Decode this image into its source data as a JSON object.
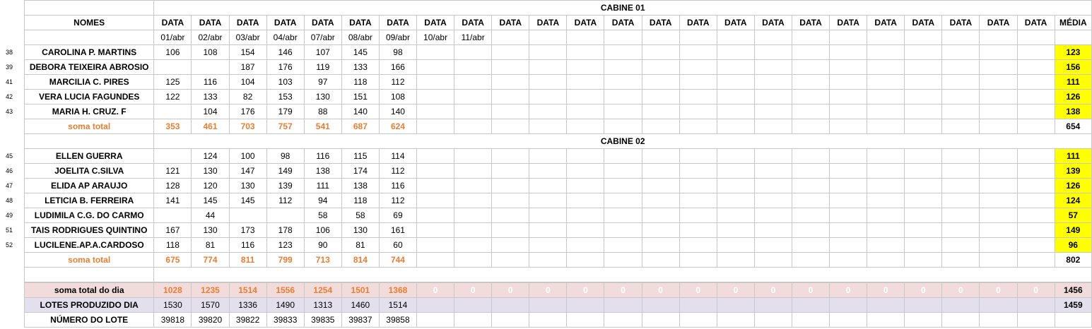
{
  "headers": {
    "cabine1": "CABINE 01",
    "cabine2": "CABINE 02",
    "nomes": "NOMES",
    "data": "DATA",
    "media": "MÉDIA",
    "dates": [
      "01/abr",
      "02/abr",
      "03/abr",
      "04/abr",
      "07/abr",
      "08/abr",
      "09/abr",
      "10/abr",
      "11/abr",
      "",
      "",
      "",
      "",
      "",
      "",
      "",
      "",
      "",
      "",
      "",
      "",
      "",
      "",
      ""
    ]
  },
  "cabine1_rows": [
    {
      "num": "38",
      "name": "CAROLINA P. MARTINS",
      "values": [
        "106",
        "108",
        "154",
        "146",
        "107",
        "145",
        "98"
      ],
      "media": "123"
    },
    {
      "num": "39",
      "name": "DEBORA TEIXEIRA ABROSIO",
      "values": [
        "",
        "",
        "187",
        "176",
        "119",
        "133",
        "166"
      ],
      "media": "156"
    },
    {
      "num": "41",
      "name": "MARCILIA C. PIRES",
      "values": [
        "125",
        "116",
        "104",
        "103",
        "97",
        "118",
        "112"
      ],
      "media": "111"
    },
    {
      "num": "42",
      "name": "VERA LUCIA FAGUNDES",
      "values": [
        "122",
        "133",
        "82",
        "153",
        "130",
        "151",
        "108"
      ],
      "media": "126"
    },
    {
      "num": "43",
      "name": "MARIA H. CRUZ. F",
      "values": [
        "",
        "104",
        "176",
        "179",
        "88",
        "140",
        "140"
      ],
      "media": "138"
    }
  ],
  "cabine1_sum": {
    "label": "soma total",
    "values": [
      "353",
      "461",
      "703",
      "757",
      "541",
      "687",
      "624"
    ],
    "media": "654"
  },
  "cabine2_rows": [
    {
      "num": "45",
      "name": "ELLEN GUERRA",
      "values": [
        "",
        "124",
        "100",
        "98",
        "116",
        "115",
        "114"
      ],
      "media": "111"
    },
    {
      "num": "46",
      "name": "JOELITA C.SILVA",
      "values": [
        "121",
        "130",
        "147",
        "149",
        "138",
        "174",
        "112"
      ],
      "media": "139"
    },
    {
      "num": "47",
      "name": "ELIDA AP ARAUJO",
      "values": [
        "128",
        "120",
        "130",
        "139",
        "111",
        "138",
        "116"
      ],
      "media": "126"
    },
    {
      "num": "48",
      "name": "LETICIA B. FERREIRA",
      "values": [
        "141",
        "145",
        "145",
        "112",
        "94",
        "118",
        "112"
      ],
      "media": "124"
    },
    {
      "num": "49",
      "name": "LUDIMILA C.G. DO CARMO",
      "values": [
        "",
        "44",
        "",
        "",
        "58",
        "58",
        "69"
      ],
      "media": "57"
    },
    {
      "num": "51",
      "name": "TAIS RODRIGUES QUINTINO",
      "values": [
        "167",
        "130",
        "173",
        "178",
        "106",
        "130",
        "161"
      ],
      "media": "149"
    },
    {
      "num": "52",
      "name": "LUCILENE.AP.A.CARDOSO",
      "values": [
        "118",
        "81",
        "116",
        "123",
        "90",
        "81",
        "60"
      ],
      "media": "96"
    }
  ],
  "cabine2_sum": {
    "label": "soma total",
    "values": [
      "675",
      "774",
      "811",
      "799",
      "713",
      "814",
      "744"
    ],
    "media": "802"
  },
  "day_total": {
    "label": "soma total  do dia",
    "values": [
      "1028",
      "1235",
      "1514",
      "1556",
      "1254",
      "1501",
      "1368"
    ],
    "media": "1456"
  },
  "lotes": {
    "label": "LOTES PRODUZIDO DIA",
    "values": [
      "1530",
      "1570",
      "1336",
      "1490",
      "1313",
      "1460",
      "1514"
    ],
    "media": "1459"
  },
  "numero_lote": {
    "label": "NÚMERO DO LOTE",
    "values": [
      "39818",
      "39820",
      "39822",
      "39833",
      "39835",
      "39837",
      "39858"
    ]
  },
  "zero": "0",
  "colors": {
    "orange": "#ed7d31",
    "yellow": "#ffff00",
    "gold": "#ffc000",
    "pink": "#f2dcdb",
    "lavender": "#e4dfec"
  }
}
